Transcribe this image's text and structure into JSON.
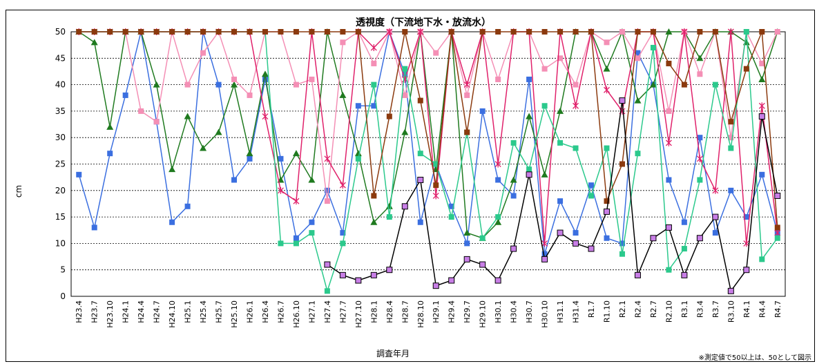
{
  "chart_data": {
    "type": "line",
    "title": "透視度（下流地下水・放流水）",
    "xlabel": "調査年月",
    "ylabel": "cm",
    "note": "※測定値で50以上は、50として図示",
    "ylim": [
      0,
      50
    ],
    "yticks": [
      0,
      5,
      10,
      15,
      20,
      25,
      30,
      35,
      40,
      45,
      50
    ],
    "grid": "horizontal-dashed",
    "categories": [
      "H23.4",
      "H23.7",
      "H23.10",
      "H24.1",
      "H24.4",
      "H24.7",
      "H24.10",
      "H25.1",
      "H25.4",
      "H25.7",
      "H25.10",
      "H26.1",
      "H26.4",
      "H26.7",
      "H26.10",
      "H27.1",
      "H27.4",
      "H27.7",
      "H27.10",
      "H28.1",
      "H28.4",
      "H28.7",
      "H28.10",
      "H29.1",
      "H29.4",
      "H29.7",
      "H29.10",
      "H30.1",
      "H30.4",
      "H30.7",
      "H30.10",
      "H31.1",
      "H31.4",
      "R1.7",
      "R1.10",
      "R2.1",
      "R2.4",
      "R2.7",
      "R2.10",
      "R3.1",
      "R3.4",
      "R3.7",
      "R3.10",
      "R4.1",
      "R4.4",
      "R4.7"
    ],
    "series": [
      {
        "color": "#3b6fe0",
        "marker": "square",
        "values": [
          23,
          13,
          27,
          38,
          50,
          33,
          14,
          17,
          50,
          40,
          22,
          26,
          41,
          26,
          11,
          14,
          20,
          12,
          36,
          36,
          50,
          42,
          14,
          25,
          17,
          10,
          35,
          22,
          19,
          41,
          8,
          18,
          12,
          21,
          11,
          10,
          46,
          40,
          22,
          14,
          30,
          12,
          20,
          15,
          23,
          12
        ]
      },
      {
        "color": "#1f7a1f",
        "marker": "triangle",
        "values": [
          50,
          48,
          32,
          50,
          50,
          40,
          24,
          34,
          28,
          31,
          40,
          27,
          42,
          22,
          27,
          22,
          50,
          38,
          27,
          14,
          17,
          31,
          50,
          24,
          50,
          12,
          11,
          14,
          22,
          34,
          23,
          35,
          50,
          50,
          43,
          50,
          37,
          40,
          50,
          50,
          45,
          50,
          50,
          48,
          41,
          50
        ]
      },
      {
        "color": "#f48fb5",
        "marker": "square",
        "values": [
          50,
          50,
          50,
          50,
          35,
          33,
          50,
          40,
          46,
          50,
          41,
          38,
          50,
          50,
          40,
          41,
          18,
          48,
          50,
          44,
          50,
          38,
          50,
          46,
          50,
          38,
          50,
          41,
          50,
          50,
          43,
          45,
          40,
          50,
          48,
          50,
          45,
          50,
          35,
          50,
          42,
          50,
          30,
          50,
          44,
          50
        ]
      },
      {
        "color": "#e0206a",
        "marker": "star",
        "values": [
          50,
          50,
          50,
          50,
          50,
          50,
          50,
          50,
          50,
          50,
          50,
          50,
          34,
          20,
          18,
          50,
          26,
          21,
          50,
          47,
          50,
          41,
          50,
          19,
          50,
          40,
          50,
          25,
          50,
          50,
          10,
          50,
          36,
          50,
          39,
          35,
          50,
          50,
          29,
          50,
          26,
          20,
          50,
          10,
          36,
          12
        ]
      },
      {
        "color": "#2bc98c",
        "marker": "square",
        "values": [
          50,
          50,
          50,
          50,
          50,
          50,
          50,
          50,
          50,
          50,
          50,
          50,
          50,
          10,
          10,
          12,
          1,
          10,
          26,
          40,
          15,
          43,
          27,
          25,
          15,
          31,
          11,
          15,
          29,
          24,
          36,
          29,
          28,
          19,
          28,
          8,
          27,
          47,
          5,
          9,
          22,
          40,
          28,
          50,
          7,
          11
        ]
      },
      {
        "color": "#8b3a0e",
        "marker": "square",
        "values": [
          50,
          50,
          50,
          50,
          50,
          50,
          50,
          50,
          50,
          50,
          50,
          50,
          50,
          50,
          50,
          50,
          50,
          50,
          50,
          19,
          34,
          50,
          37,
          21,
          50,
          31,
          50,
          50,
          50,
          50,
          50,
          50,
          50,
          50,
          18,
          25,
          50,
          50,
          44,
          40,
          50,
          50,
          33,
          43,
          50,
          13
        ]
      },
      {
        "color": "#000000",
        "marker": "square-violet",
        "values": [
          null,
          null,
          null,
          null,
          null,
          null,
          null,
          null,
          null,
          null,
          null,
          null,
          null,
          null,
          null,
          null,
          6,
          4,
          3,
          4,
          5,
          17,
          22,
          2,
          3,
          7,
          6,
          3,
          9,
          23,
          7,
          12,
          10,
          9,
          16,
          37,
          4,
          11,
          13,
          4,
          11,
          15,
          1,
          5,
          34,
          19
        ]
      }
    ]
  }
}
